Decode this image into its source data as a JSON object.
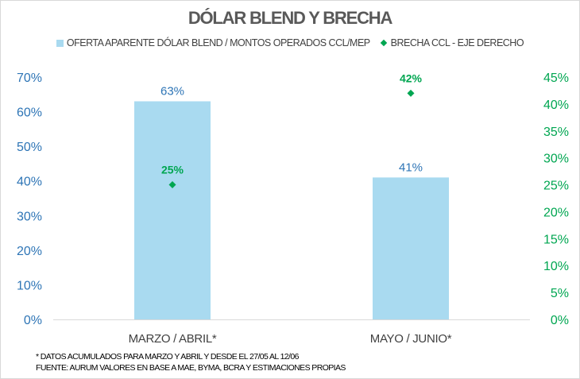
{
  "chart_data": {
    "type": "bar",
    "title": "DÓLAR BLEND Y BRECHA",
    "categories": [
      "MARZO / ABRIL*",
      "MAYO / JUNIO*"
    ],
    "series": [
      {
        "name": "OFERTA APARENTE DÓLAR BLEND / MONTOS OPERADOS CCL/MEP",
        "type": "bar",
        "axis": "left",
        "values": [
          63,
          41
        ],
        "labels": [
          "63%",
          "41%"
        ],
        "color": "#a9daf0"
      },
      {
        "name": "BRECHA CCL - EJE DERECHO",
        "type": "scatter",
        "axis": "right",
        "values": [
          25,
          42
        ],
        "labels": [
          "25%",
          "42%"
        ],
        "color": "#00a651"
      }
    ],
    "y_left": {
      "range": [
        0,
        70
      ],
      "ticks": [
        "0%",
        "10%",
        "20%",
        "30%",
        "40%",
        "50%",
        "60%",
        "70%"
      ],
      "color": "#2e75b6"
    },
    "y_right": {
      "range": [
        0,
        45
      ],
      "ticks": [
        "0%",
        "5%",
        "10%",
        "15%",
        "20%",
        "25%",
        "30%",
        "35%",
        "40%",
        "45%"
      ],
      "color": "#00a651"
    },
    "grid": false,
    "legend_position": "top"
  },
  "footnotes": [
    "* DATOS ACUMULADOS PARA MARZO Y ABRIL Y DESDE EL 27/05 AL 12/06",
    "FUENTE: AURUM VALORES EN BASE A MAE, BYMA, BCRA Y ESTIMACIONES PROPIAS"
  ]
}
